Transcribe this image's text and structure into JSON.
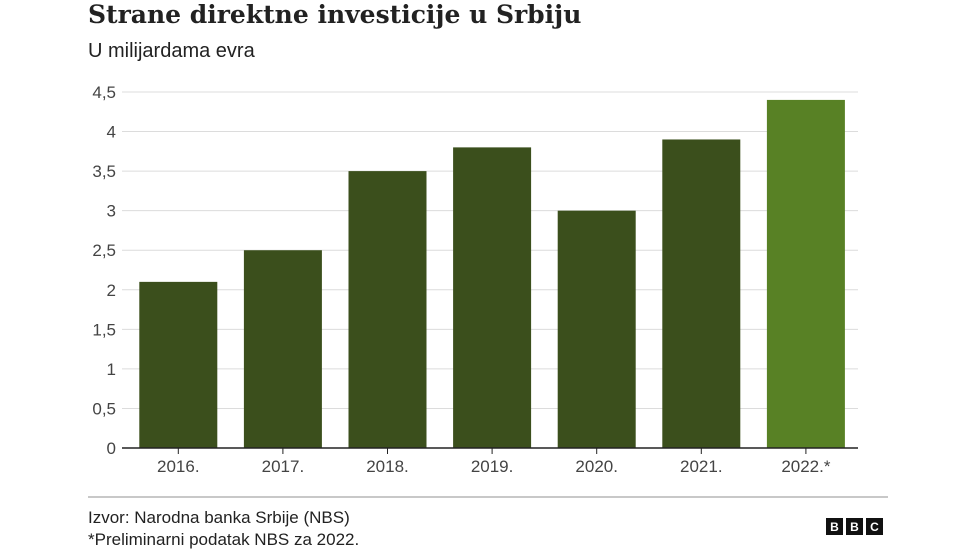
{
  "chart_data": {
    "type": "bar",
    "title": "Strane direktne investicije u Srbiju",
    "subtitle": "U milijardama evra",
    "categories": [
      "2016.",
      "2017.",
      "2018.",
      "2019.",
      "2020.",
      "2021.",
      "2022.*"
    ],
    "values": [
      2.1,
      2.5,
      3.5,
      3.8,
      3.0,
      3.9,
      4.4
    ],
    "colors": [
      "#3b4f1c",
      "#3b4f1c",
      "#3b4f1c",
      "#3b4f1c",
      "#3b4f1c",
      "#3b4f1c",
      "#588125"
    ],
    "ylim": [
      0,
      4.5
    ],
    "yticks": [
      "0",
      "0,5",
      "1",
      "1,5",
      "2",
      "2,5",
      "3",
      "3,5",
      "4",
      "4,5"
    ],
    "grid": true,
    "xlabel": "",
    "ylabel": ""
  },
  "footer": {
    "source": "Izvor: Narodna banka Srbije (NBS)",
    "note": "*Preliminarni podatak NBS za 2022.",
    "logo": [
      "B",
      "B",
      "C"
    ]
  }
}
